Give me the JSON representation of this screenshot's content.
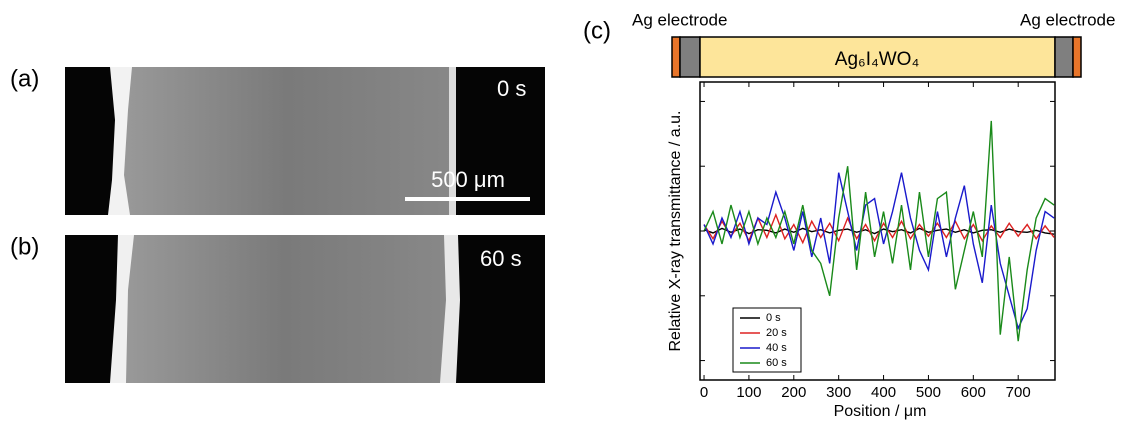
{
  "panels": {
    "a": {
      "label": "(a)",
      "time": "0 s",
      "scale_bar": "500 μm"
    },
    "b": {
      "label": "(b)",
      "time": "60 s"
    },
    "c": {
      "label": "(c)"
    }
  },
  "schematic": {
    "left_electrode": "Ag electrode",
    "right_electrode": "Ag electrode",
    "compound": "Ag₆I₄WO₄"
  },
  "chart_data": {
    "type": "line",
    "xlabel": "Position / μm",
    "ylabel": "Relative X-ray transmittance / a.u.",
    "xlim": [
      -9,
      782
    ],
    "xticks": [
      0,
      100,
      200,
      300,
      400,
      500,
      600,
      700
    ],
    "ylim": [
      -2.3,
      2.3
    ],
    "yticks": [
      -2,
      -1,
      0,
      1,
      2
    ],
    "x": [
      0,
      20,
      40,
      60,
      80,
      100,
      120,
      140,
      160,
      180,
      200,
      220,
      240,
      260,
      280,
      300,
      320,
      340,
      360,
      380,
      400,
      420,
      440,
      460,
      480,
      500,
      520,
      540,
      560,
      580,
      600,
      620,
      640,
      660,
      680,
      700,
      720,
      740,
      760,
      780
    ],
    "series": [
      {
        "name": "0 s",
        "color": "#000000",
        "values": [
          0.02,
          -0.03,
          0.04,
          -0.02,
          0.03,
          -0.04,
          0.02,
          0.01,
          -0.03,
          0.03,
          -0.02,
          0.04,
          -0.01,
          0.02,
          -0.03,
          0.01,
          0.03,
          -0.02,
          0.02,
          -0.04,
          0.03,
          -0.01,
          0.02,
          -0.03,
          0.04,
          -0.02,
          0.01,
          0.03,
          -0.02,
          0.02,
          -0.03,
          0.01,
          0.02,
          -0.02,
          0.03,
          -0.01,
          -0.02,
          0.01,
          -0.03,
          -0.05
        ]
      },
      {
        "name": "20 s",
        "color": "#dd2222",
        "values": [
          0.1,
          -0.12,
          0.15,
          -0.08,
          0.12,
          -0.15,
          0.2,
          -0.1,
          0.25,
          -0.12,
          0.1,
          -0.18,
          0.15,
          -0.1,
          0.12,
          -0.15,
          0.2,
          -0.12,
          0.1,
          -0.15,
          0.12,
          -0.1,
          0.15,
          -0.12,
          0.1,
          -0.08,
          0.12,
          -0.1,
          0.15,
          -0.12,
          0.1,
          -0.15,
          0.08,
          -0.1,
          0.12,
          -0.08,
          0.1,
          -0.12,
          0.08,
          -0.1
        ]
      },
      {
        "name": "40 s",
        "color": "#1a1acc",
        "values": [
          0.1,
          -0.2,
          0.2,
          -0.1,
          0.3,
          -0.2,
          0.2,
          0.1,
          0.6,
          0.2,
          -0.3,
          0.3,
          -0.4,
          0.2,
          -0.5,
          0.9,
          0.3,
          -0.3,
          0.4,
          0.5,
          -0.2,
          0.3,
          0.9,
          0.2,
          -0.3,
          -0.6,
          0.3,
          -0.4,
          0.2,
          0.7,
          -0.2,
          -0.8,
          0.4,
          -0.5,
          -1.0,
          -1.5,
          -1.2,
          -0.3,
          0.3,
          0.2
        ]
      },
      {
        "name": "60 s",
        "color": "#1a8a1a",
        "values": [
          0,
          0.3,
          -0.2,
          0.4,
          -0.1,
          0.3,
          -0.2,
          0.2,
          -0.1,
          0.3,
          -0.2,
          0.4,
          -0.3,
          -0.5,
          -1.0,
          0.2,
          1.0,
          -0.6,
          0.6,
          -0.4,
          0.3,
          -0.5,
          0.4,
          -0.6,
          0.6,
          -0.4,
          0.5,
          0.6,
          -0.9,
          -0.3,
          0.3,
          -0.4,
          1.7,
          -1.6,
          -0.4,
          -1.7,
          -0.6,
          0.2,
          0.5,
          0.4
        ]
      }
    ]
  }
}
